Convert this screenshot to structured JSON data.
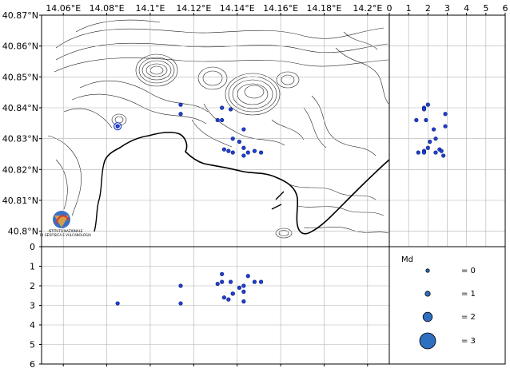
{
  "map": {
    "lon_ticks": [
      "14.06°E",
      "14.08°E",
      "14.1°E",
      "14.12°E",
      "14.14°E",
      "14.16°E",
      "14.18°E",
      "14.2°E"
    ],
    "lat_ticks": [
      "40.87°N",
      "40.86°N",
      "40.85°N",
      "40.84°N",
      "40.83°N",
      "40.82°N",
      "40.81°N",
      "40.8°N"
    ],
    "logo_text": [
      "ISTITUTO NAZIONALE",
      "DI GEOFISICA E VULCANOLOGIA"
    ]
  },
  "colors": {
    "event_fill": "#1f3fd6",
    "event_stroke": "#0b1a66",
    "legend_fill": "#2f6fbf",
    "grid": "#b0b0b0",
    "contour": "#222222",
    "coast": "#000000"
  },
  "right_panel": {
    "x_ticks": [
      "0",
      "1",
      "2",
      "3",
      "4",
      "5",
      "6"
    ]
  },
  "bottom_panel": {
    "y_ticks": [
      "0",
      "1",
      "2",
      "3",
      "4",
      "5",
      "6"
    ]
  },
  "legend": {
    "title": "Md",
    "entries": [
      {
        "mag": 0,
        "label": "= 0"
      },
      {
        "mag": 1,
        "label": "= 1"
      },
      {
        "mag": 2,
        "label": "= 2"
      },
      {
        "mag": 3,
        "label": "= 3"
      }
    ]
  },
  "chart_data": {
    "type": "scatter",
    "events": [
      {
        "lon": 14.114,
        "lat": 40.841,
        "depth": 2.0
      },
      {
        "lon": 14.114,
        "lat": 40.838,
        "depth": 2.9
      },
      {
        "lon": 14.133,
        "lat": 40.84,
        "depth": 1.8
      },
      {
        "lon": 14.137,
        "lat": 40.8395,
        "depth": 1.8
      },
      {
        "lon": 14.131,
        "lat": 40.836,
        "depth": 1.9
      },
      {
        "lon": 14.133,
        "lat": 40.836,
        "depth": 1.4
      },
      {
        "lon": 14.143,
        "lat": 40.833,
        "depth": 2.3
      },
      {
        "lon": 14.138,
        "lat": 40.83,
        "depth": 2.4
      },
      {
        "lon": 14.141,
        "lat": 40.829,
        "depth": 2.1
      },
      {
        "lon": 14.143,
        "lat": 40.827,
        "depth": 2.0
      },
      {
        "lon": 14.134,
        "lat": 40.8265,
        "depth": 2.6
      },
      {
        "lon": 14.136,
        "lat": 40.826,
        "depth": 2.7
      },
      {
        "lon": 14.138,
        "lat": 40.8255,
        "depth": 2.4
      },
      {
        "lon": 14.145,
        "lat": 40.8255,
        "depth": 1.5
      },
      {
        "lon": 14.148,
        "lat": 40.826,
        "depth": 1.8
      },
      {
        "lon": 14.143,
        "lat": 40.8245,
        "depth": 2.8
      },
      {
        "lon": 14.151,
        "lat": 40.8255,
        "depth": 1.8
      },
      {
        "lon": 14.085,
        "lat": 40.834,
        "depth": 2.9
      }
    ],
    "lon_range": [
      14.05,
      14.21
    ],
    "lat_range": [
      40.795,
      40.87
    ],
    "depth_range": [
      0,
      6
    ]
  }
}
